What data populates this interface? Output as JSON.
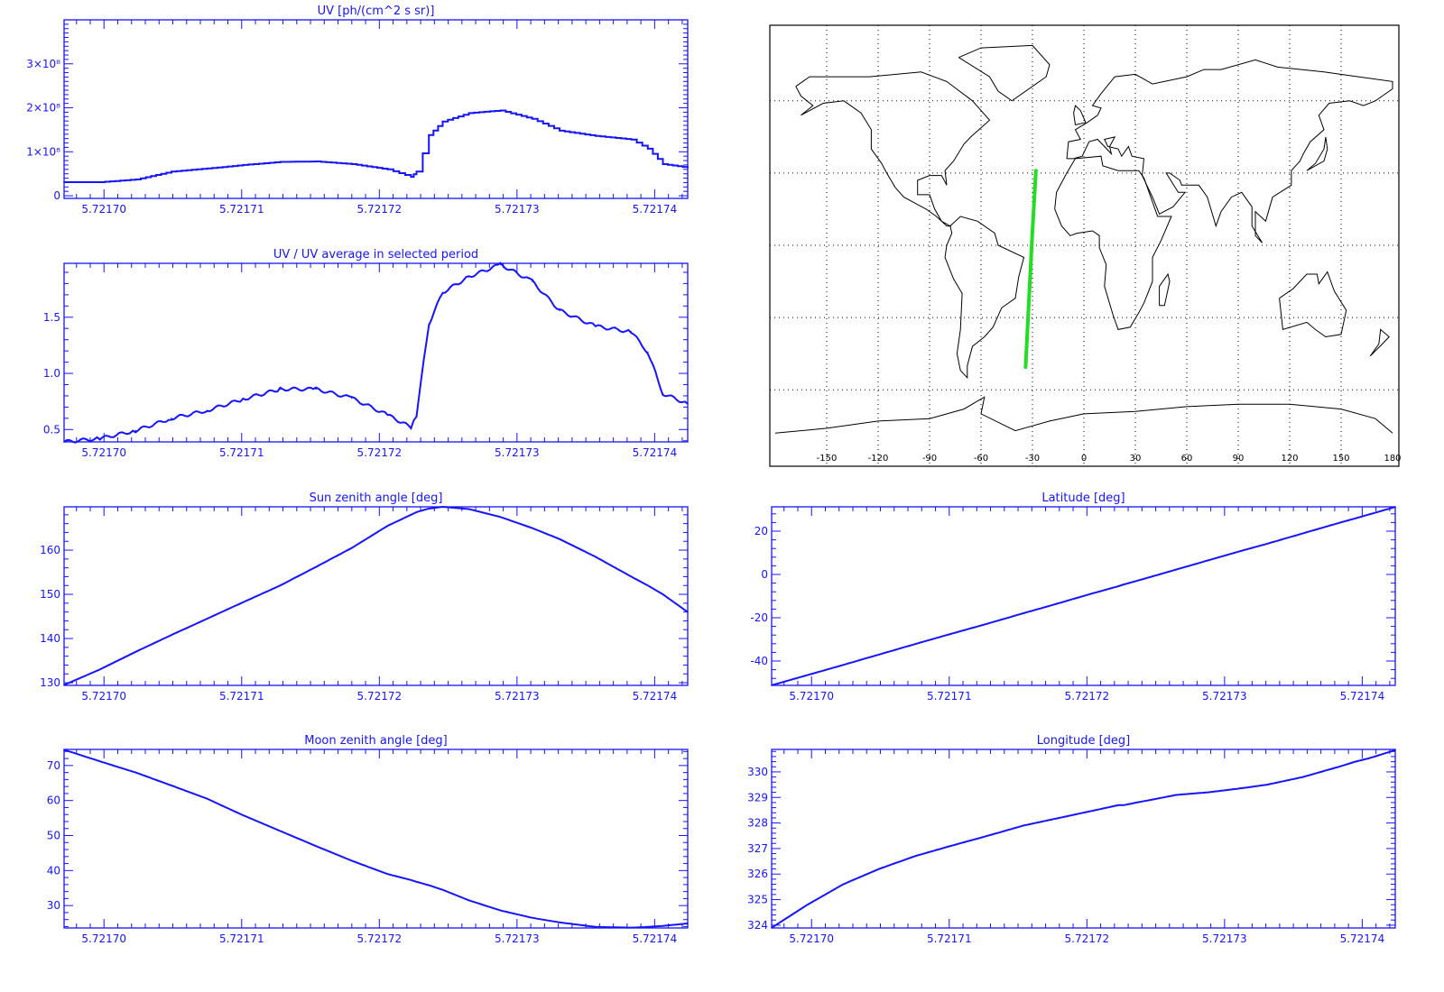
{
  "colors": {
    "axis": "#1414ff",
    "series": "#1414ff",
    "track": "#22dd22",
    "coast": "#000000"
  },
  "time_x": [
    5.7216971,
    5.7216997,
    5.7217023,
    5.7217049,
    5.7217075,
    5.7217101,
    5.7217128,
    5.7217154,
    5.721718,
    5.7217206,
    5.7217223,
    5.7217227,
    5.7217236,
    5.7217246,
    5.7217265,
    5.7217288,
    5.7217311,
    5.7217331,
    5.7217357,
    5.7217383,
    5.7217395,
    5.7217406,
    5.7217424
  ],
  "chart_data": [
    {
      "id": "uv",
      "type": "line",
      "title": "UV [ph/(cm^2 s sr)]",
      "xlim": [
        5.7216971,
        5.7217424
      ],
      "ylim": [
        -6000000,
        400000000
      ],
      "xticks": [
        5.7217,
        5.72171,
        5.72172,
        5.72173,
        5.72174
      ],
      "xtick_labels": [
        "5.72170",
        "5.72171",
        "5.72172",
        "5.72173",
        "5.72174"
      ],
      "x_minor": 10,
      "yticks": [
        0,
        100000000,
        200000000,
        300000000
      ],
      "ytick_labels": [
        "0",
        "1×10⁸",
        "2×10⁸",
        "3×10⁸"
      ],
      "y_minor": 10,
      "step": true,
      "values": [
        31000000,
        31000000,
        37000000,
        55000000,
        62000000,
        70000000,
        77000000,
        78000000,
        72000000,
        60000000,
        43000000,
        55000000,
        138000000,
        169000000,
        188000000,
        194000000,
        175000000,
        148000000,
        136000000,
        128000000,
        107000000,
        72000000,
        64000000
      ]
    },
    {
      "id": "ratio",
      "type": "line",
      "title": "UV / UV average in selected period",
      "xlim": [
        5.7216971,
        5.7217424
      ],
      "ylim": [
        0.39,
        1.98
      ],
      "xticks": [
        5.7217,
        5.72171,
        5.72172,
        5.72173,
        5.72174
      ],
      "xtick_labels": [
        "5.72170",
        "5.72171",
        "5.72172",
        "5.72173",
        "5.72174"
      ],
      "x_minor": 10,
      "yticks": [
        0.5,
        1.0,
        1.5
      ],
      "ytick_labels": [
        "0.5",
        "1.0",
        "1.5"
      ],
      "y_minor": 5,
      "noisy": true,
      "values": [
        0.39,
        0.42,
        0.49,
        0.6,
        0.67,
        0.77,
        0.86,
        0.86,
        0.78,
        0.63,
        0.52,
        0.63,
        1.44,
        1.72,
        1.86,
        1.97,
        1.82,
        1.56,
        1.42,
        1.37,
        1.19,
        0.82,
        0.73
      ]
    },
    {
      "id": "sun",
      "type": "line",
      "title": "Sun zenith angle [deg]",
      "xlim": [
        5.7216971,
        5.7217424
      ],
      "ylim": [
        129.4,
        169.8
      ],
      "xticks": [
        5.7217,
        5.72171,
        5.72172,
        5.72173,
        5.72174
      ],
      "xtick_labels": [
        "5.72170",
        "5.72171",
        "5.72172",
        "5.72173",
        "5.72174"
      ],
      "x_minor": 10,
      "yticks": [
        130,
        140,
        150,
        160
      ],
      "ytick_labels": [
        "130",
        "140",
        "150",
        "160"
      ],
      "y_minor": 5,
      "values": [
        129.5,
        133,
        137,
        140.8,
        144.5,
        148.2,
        152,
        156.2,
        160.5,
        165.5,
        168,
        168.6,
        169.4,
        169.8,
        169.3,
        167.5,
        165,
        162.5,
        158.5,
        154,
        152,
        150,
        146
      ]
    },
    {
      "id": "moon",
      "type": "line",
      "title": "Moon zenith angle [deg]",
      "xlim": [
        5.7216971,
        5.7217424
      ],
      "ylim": [
        23.6,
        74.6
      ],
      "xticks": [
        5.7217,
        5.72171,
        5.72172,
        5.72173,
        5.72174
      ],
      "xtick_labels": [
        "5.72170",
        "5.72171",
        "5.72172",
        "5.72173",
        "5.72174"
      ],
      "x_minor": 10,
      "yticks": [
        30,
        40,
        50,
        60,
        70
      ],
      "ytick_labels": [
        "30",
        "40",
        "50",
        "60",
        "70"
      ],
      "y_minor": 5,
      "values": [
        74.5,
        71.2,
        68,
        64.3,
        60.5,
        55.8,
        51.3,
        47,
        42.8,
        39,
        37.3,
        36.8,
        35.8,
        34.5,
        31.5,
        28.6,
        26.5,
        25.2,
        23.9,
        23.7,
        23.9,
        24.2,
        24.9
      ]
    },
    {
      "id": "lat",
      "type": "line",
      "title": "Latitude [deg]",
      "xlim": [
        5.7216971,
        5.7217424
      ],
      "ylim": [
        -51.25,
        31.25
      ],
      "xticks": [
        5.7217,
        5.72171,
        5.72172,
        5.72173,
        5.72174
      ],
      "xtick_labels": [
        "5.72170",
        "5.72171",
        "5.72172",
        "5.72173",
        "5.72174"
      ],
      "x_minor": 10,
      "yticks": [
        -40,
        -20,
        0,
        20
      ],
      "ytick_labels": [
        "-40",
        "-20",
        "0",
        "20"
      ],
      "y_minor": 5,
      "values": [
        -51.2,
        -46.5,
        -41.8,
        -37.0,
        -32.2,
        -27.5,
        -22.7,
        -17.9,
        -13.2,
        -8.4,
        -5.4,
        -4.6,
        -3.0,
        -1.2,
        2.3,
        6.5,
        10.7,
        14.2,
        19.0,
        23.8,
        25.9,
        27.9,
        31.2
      ]
    },
    {
      "id": "lon",
      "type": "line",
      "title": "Longitude [deg]",
      "xlim": [
        5.7216971,
        5.7217424
      ],
      "ylim": [
        323.89,
        330.88
      ],
      "xticks": [
        5.7217,
        5.72171,
        5.72172,
        5.72173,
        5.72174
      ],
      "xtick_labels": [
        "5.72170",
        "5.72171",
        "5.72172",
        "5.72173",
        "5.72174"
      ],
      "x_minor": 10,
      "yticks": [
        324,
        325,
        326,
        327,
        328,
        329,
        330
      ],
      "ytick_labels": [
        "324",
        "325",
        "326",
        "327",
        "328",
        "329",
        "330"
      ],
      "y_minor": 5,
      "values": [
        323.9,
        324.8,
        325.6,
        326.2,
        326.7,
        327.1,
        327.5,
        327.9,
        328.2,
        328.5,
        328.7,
        328.7,
        328.8,
        328.9,
        329.1,
        329.2,
        329.35,
        329.5,
        329.8,
        330.2,
        330.4,
        330.55,
        330.85
      ]
    }
  ],
  "map": {
    "lon_range": [
      -180,
      180
    ],
    "lat_range": [
      -90,
      90
    ],
    "lon_ticks": [
      -150,
      -120,
      -90,
      -60,
      -30,
      0,
      30,
      60,
      90,
      120,
      150,
      180
    ],
    "lon_tick_labels": [
      "-150",
      "-120",
      "-90",
      "-60",
      "-30",
      "0",
      "30",
      "60",
      "90",
      "120",
      "150",
      "180"
    ],
    "lat_grid": [
      60,
      30,
      0,
      -30,
      -60
    ],
    "track_lon": [
      -28,
      -30,
      -32,
      -34
    ],
    "track_lat": [
      31,
      6,
      -22,
      -50.6
    ]
  }
}
